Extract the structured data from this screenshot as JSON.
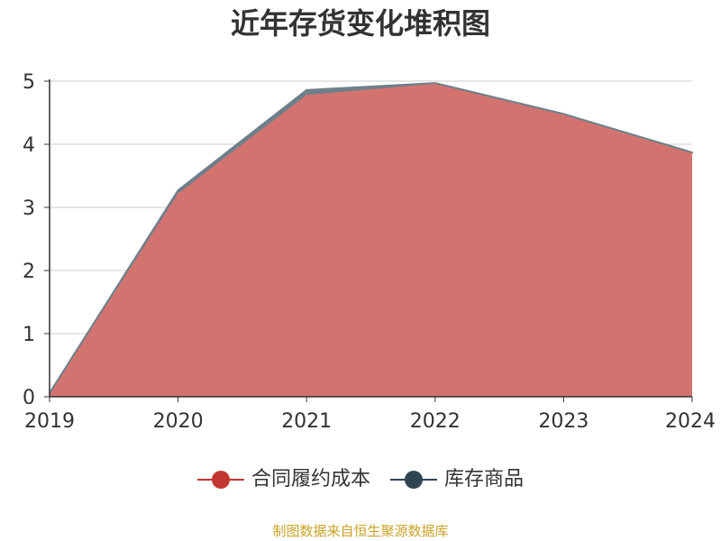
{
  "title": "近年存货变化堆积图",
  "source": "制图数据来自恒生聚源数据库",
  "colors": {
    "series_0": "#c23531",
    "series_1": "#2f4554",
    "area_fill": "#d37370",
    "top_line": "#6e7f8a",
    "grid": "#cccccc",
    "axis": "#333333"
  },
  "chart_data": {
    "type": "area",
    "stacked": true,
    "title": "近年存货变化堆积图",
    "x": [
      "2019",
      "2020",
      "2021",
      "2022",
      "2023",
      "2024"
    ],
    "series": [
      {
        "name": "合同履约成本",
        "values": [
          0.05,
          3.22,
          4.78,
          4.96,
          4.47,
          3.86
        ]
      },
      {
        "name": "库存商品",
        "values": [
          0.01,
          0.05,
          0.08,
          0.01,
          0.01,
          0.01
        ]
      }
    ],
    "xlabel": "",
    "ylabel": "",
    "ylim": [
      0,
      5
    ],
    "yticks": [
      "0",
      "1",
      "2",
      "3",
      "4",
      "5"
    ],
    "grid": true,
    "legend_position": "bottom"
  },
  "legend": [
    {
      "label": "合同履约成本",
      "icon": "circle-line-marker"
    },
    {
      "label": "库存商品",
      "icon": "circle-line-marker"
    }
  ]
}
